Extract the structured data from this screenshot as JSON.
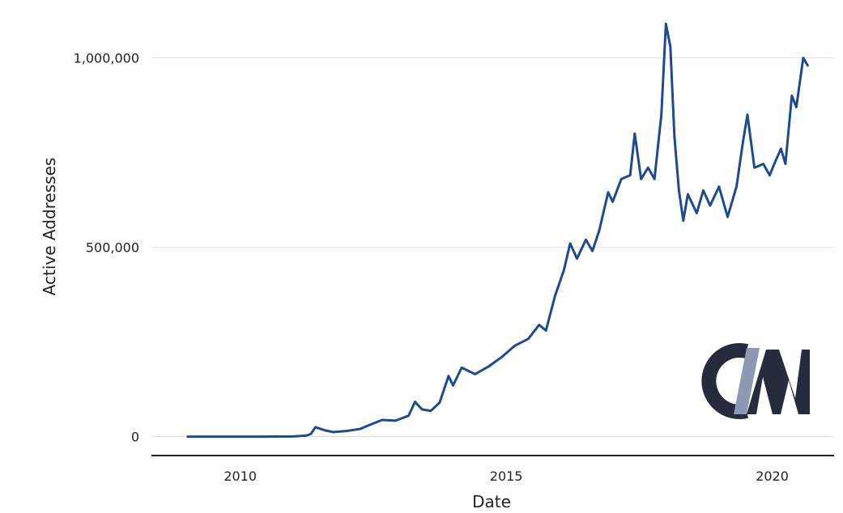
{
  "chart_data": {
    "type": "line",
    "title": "",
    "xlabel": "Date",
    "ylabel": "Active Addresses",
    "x_range": [
      "2008-05-01",
      "2021-03-01"
    ],
    "ylim": [
      -50000,
      1110000
    ],
    "grid": {
      "horizontal": true,
      "vertical": false
    },
    "y_ticks": [
      {
        "value": 0,
        "label": "0"
      },
      {
        "value": 500000,
        "label": "500,000"
      },
      {
        "value": 1000000,
        "label": "1,000,000"
      }
    ],
    "x_ticks": [
      {
        "value": "2010-01-01",
        "label": "2010"
      },
      {
        "value": "2015-01-01",
        "label": "2015"
      },
      {
        "value": "2020-01-01",
        "label": "2020"
      }
    ],
    "series": [
      {
        "color": "#1f4b8c",
        "points": [
          [
            "2009-01-05",
            0
          ],
          [
            "2009-07-01",
            0
          ],
          [
            "2010-01-01",
            0
          ],
          [
            "2010-06-01",
            0
          ],
          [
            "2011-01-01",
            500
          ],
          [
            "2011-04-01",
            3000
          ],
          [
            "2011-05-01",
            7000
          ],
          [
            "2011-06-01",
            25000
          ],
          [
            "2011-08-01",
            17000
          ],
          [
            "2011-10-01",
            12000
          ],
          [
            "2012-01-01",
            15000
          ],
          [
            "2012-04-01",
            20000
          ],
          [
            "2012-06-01",
            30000
          ],
          [
            "2012-09-01",
            44000
          ],
          [
            "2012-12-01",
            42000
          ],
          [
            "2013-03-01",
            55000
          ],
          [
            "2013-04-15",
            92000
          ],
          [
            "2013-06-01",
            72000
          ],
          [
            "2013-08-01",
            68000
          ],
          [
            "2013-10-01",
            90000
          ],
          [
            "2013-12-01",
            160000
          ],
          [
            "2014-01-01",
            135000
          ],
          [
            "2014-03-01",
            182000
          ],
          [
            "2014-06-01",
            165000
          ],
          [
            "2014-09-01",
            185000
          ],
          [
            "2014-12-01",
            210000
          ],
          [
            "2015-03-01",
            240000
          ],
          [
            "2015-06-01",
            258000
          ],
          [
            "2015-08-15",
            295000
          ],
          [
            "2015-10-01",
            280000
          ],
          [
            "2015-12-01",
            370000
          ],
          [
            "2016-02-01",
            440000
          ],
          [
            "2016-03-15",
            510000
          ],
          [
            "2016-05-01",
            470000
          ],
          [
            "2016-07-01",
            520000
          ],
          [
            "2016-08-15",
            490000
          ],
          [
            "2016-10-01",
            545000
          ],
          [
            "2016-12-01",
            645000
          ],
          [
            "2017-01-01",
            620000
          ],
          [
            "2017-03-01",
            680000
          ],
          [
            "2017-05-01",
            690000
          ],
          [
            "2017-06-01",
            800000
          ],
          [
            "2017-07-15",
            680000
          ],
          [
            "2017-09-01",
            710000
          ],
          [
            "2017-10-15",
            680000
          ],
          [
            "2017-12-01",
            850000
          ],
          [
            "2018-01-01",
            1090000
          ],
          [
            "2018-02-01",
            1030000
          ],
          [
            "2018-03-01",
            790000
          ],
          [
            "2018-04-01",
            650000
          ],
          [
            "2018-05-01",
            570000
          ],
          [
            "2018-06-01",
            640000
          ],
          [
            "2018-08-01",
            590000
          ],
          [
            "2018-09-15",
            650000
          ],
          [
            "2018-11-01",
            610000
          ],
          [
            "2019-01-01",
            660000
          ],
          [
            "2019-03-01",
            580000
          ],
          [
            "2019-05-01",
            660000
          ],
          [
            "2019-06-15",
            780000
          ],
          [
            "2019-07-15",
            850000
          ],
          [
            "2019-09-01",
            710000
          ],
          [
            "2019-11-01",
            720000
          ],
          [
            "2019-12-15",
            690000
          ],
          [
            "2020-01-15",
            720000
          ],
          [
            "2020-03-01",
            760000
          ],
          [
            "2020-04-01",
            720000
          ],
          [
            "2020-05-15",
            900000
          ],
          [
            "2020-06-15",
            870000
          ],
          [
            "2020-08-01",
            1000000
          ],
          [
            "2020-09-01",
            980000
          ]
        ]
      }
    ]
  },
  "logo": {
    "text": "CM",
    "dark_color": "#262b3e",
    "accent_color": "#8d99b3"
  }
}
